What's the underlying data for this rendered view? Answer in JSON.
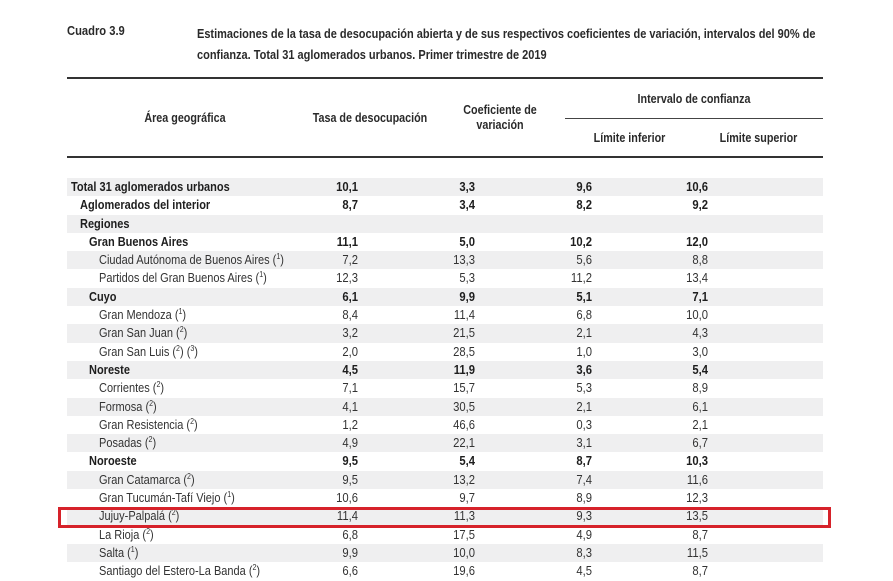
{
  "caption": {
    "number": "Cuadro 3.9",
    "title": "Estimaciones de la tasa de desocupación abierta y de sus respectivos coeficientes de variación, intervalos del 90% de confianza. Total 31 aglomerados urbanos. Primer trimestre de 2019"
  },
  "headers": {
    "area": "Área geográfica",
    "tasa": "Tasa de desocupación",
    "cv": "Coeficiente de variación",
    "intervalo": "Intervalo de confianza",
    "inferior": "Límite inferior",
    "superior": "Límite superior"
  },
  "highlight": {
    "row_label": "Jujuy-Palpalá",
    "color": "#d6222a"
  },
  "rows": [
    {
      "label": "Total 31 aglomerados urbanos",
      "note": "",
      "level": 0,
      "bold": true,
      "tasa": "10,1",
      "cv": "3,3",
      "inf": "9,6",
      "sup": "10,6"
    },
    {
      "label": "Aglomerados del interior",
      "note": "",
      "level": 1,
      "bold": true,
      "tasa": "8,7",
      "cv": "3,4",
      "inf": "8,2",
      "sup": "9,2"
    },
    {
      "label": "Regiones",
      "note": "",
      "level": 1,
      "bold": true,
      "tasa": "",
      "cv": "",
      "inf": "",
      "sup": ""
    },
    {
      "label": "Gran Buenos Aires",
      "note": "",
      "level": 2,
      "bold": true,
      "tasa": "11,1",
      "cv": "5,0",
      "inf": "10,2",
      "sup": "12,0"
    },
    {
      "label": "Ciudad Autónoma de Buenos Aires",
      "note": "(1)",
      "level": 3,
      "bold": false,
      "tasa": "7,2",
      "cv": "13,3",
      "inf": "5,6",
      "sup": "8,8"
    },
    {
      "label": "Partidos del Gran Buenos Aires",
      "note": "(1)",
      "level": 3,
      "bold": false,
      "tasa": "12,3",
      "cv": "5,3",
      "inf": "11,2",
      "sup": "13,4"
    },
    {
      "label": "Cuyo",
      "note": "",
      "level": 2,
      "bold": true,
      "tasa": "6,1",
      "cv": "9,9",
      "inf": "5,1",
      "sup": "7,1"
    },
    {
      "label": "Gran Mendoza ",
      "note": "(1)",
      "level": 3,
      "bold": false,
      "tasa": "8,4",
      "cv": "11,4",
      "inf": "6,8",
      "sup": "10,0"
    },
    {
      "label": "Gran San Juan ",
      "note": "(2)",
      "level": 3,
      "bold": false,
      "tasa": "3,2",
      "cv": "21,5",
      "inf": "2,1",
      "sup": "4,3"
    },
    {
      "label": "Gran San Luis",
      "note": "(2) (3)",
      "level": 3,
      "bold": false,
      "tasa": "2,0",
      "cv": "28,5",
      "inf": "1,0",
      "sup": "3,0"
    },
    {
      "label": "Noreste",
      "note": "",
      "level": 2,
      "bold": true,
      "tasa": "4,5",
      "cv": "11,9",
      "inf": "3,6",
      "sup": "5,4"
    },
    {
      "label": "Corrientes",
      "note": "(2)",
      "level": 3,
      "bold": false,
      "tasa": "7,1",
      "cv": "15,7",
      "inf": "5,3",
      "sup": "8,9"
    },
    {
      "label": "Formosa",
      "note": "(2)",
      "level": 3,
      "bold": false,
      "tasa": "4,1",
      "cv": "30,5",
      "inf": "2,1",
      "sup": "6,1"
    },
    {
      "label": "Gran Resistencia",
      "note": "(2)",
      "level": 3,
      "bold": false,
      "tasa": "1,2",
      "cv": "46,6",
      "inf": "0,3",
      "sup": "2,1"
    },
    {
      "label": "Posadas",
      "note": "(2)",
      "level": 3,
      "bold": false,
      "tasa": "4,9",
      "cv": "22,1",
      "inf": "3,1",
      "sup": "6,7"
    },
    {
      "label": "Noroeste",
      "note": "",
      "level": 2,
      "bold": true,
      "tasa": "9,5",
      "cv": "5,4",
      "inf": "8,7",
      "sup": "10,3"
    },
    {
      "label": "Gran Catamarca",
      "note": "(2)",
      "level": 3,
      "bold": false,
      "tasa": "9,5",
      "cv": "13,2",
      "inf": "7,4",
      "sup": "11,6"
    },
    {
      "label": "Gran Tucumán-Tafí Viejo",
      "note": "(1)",
      "level": 3,
      "bold": false,
      "tasa": "10,6",
      "cv": "9,7",
      "inf": "8,9",
      "sup": "12,3"
    },
    {
      "label": "Jujuy-Palpalá",
      "note": "(2)",
      "level": 3,
      "bold": false,
      "tasa": "11,4",
      "cv": "11,3",
      "inf": "9,3",
      "sup": "13,5"
    },
    {
      "label": "La Rioja",
      "note": "(2)",
      "level": 3,
      "bold": false,
      "tasa": "6,8",
      "cv": "17,5",
      "inf": "4,9",
      "sup": "8,7"
    },
    {
      "label": "Salta",
      "note": "(1)",
      "level": 3,
      "bold": false,
      "tasa": "9,9",
      "cv": "10,0",
      "inf": "8,3",
      "sup": "11,5"
    },
    {
      "label": "Santiago del Estero-La Banda",
      "note": "(2)",
      "level": 3,
      "bold": false,
      "tasa": "6,6",
      "cv": "19,6",
      "inf": "4,5",
      "sup": "8,7"
    }
  ]
}
